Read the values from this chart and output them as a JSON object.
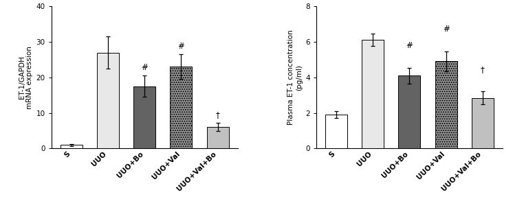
{
  "chart1": {
    "ylabel_line1": "ET-1/GAPDH",
    "ylabel_line2": "mRNA expression",
    "categories": [
      "S",
      "UUO",
      "UUO+Bo",
      "UUO+Val",
      "UUO+Val+Bo"
    ],
    "values": [
      1.0,
      27.0,
      17.5,
      23.0,
      6.0
    ],
    "errors": [
      0.3,
      4.5,
      3.0,
      3.5,
      1.2
    ],
    "ylim": [
      0,
      40
    ],
    "yticks": [
      0,
      10,
      20,
      30,
      40
    ],
    "bar_colors": [
      "#ffffff",
      "#e8e8e8",
      "#636363",
      "#969696",
      "#c0c0c0"
    ],
    "bar_hatches": [
      "",
      "",
      "",
      ".....",
      ""
    ],
    "annotations": [
      "",
      "",
      "#",
      "#",
      "†"
    ],
    "annot_offsets": [
      0,
      0,
      1.0,
      1.0,
      1.0
    ]
  },
  "chart2": {
    "ylabel_line1": "Plasma ET-1 concentration",
    "ylabel_line2": "(pg/ml)",
    "categories": [
      "S",
      "UUO",
      "UUO+Bo",
      "UUO+Val",
      "UUO+Val+Bo"
    ],
    "values": [
      1.9,
      6.1,
      4.1,
      4.9,
      2.85
    ],
    "errors": [
      0.2,
      0.35,
      0.45,
      0.55,
      0.35
    ],
    "ylim": [
      0,
      8
    ],
    "yticks": [
      0,
      2,
      4,
      6,
      8
    ],
    "bar_colors": [
      "#ffffff",
      "#e8e8e8",
      "#636363",
      "#969696",
      "#c0c0c0"
    ],
    "bar_hatches": [
      "",
      "",
      "",
      ".....",
      ""
    ],
    "annotations": [
      "",
      "",
      "#",
      "#",
      "†"
    ],
    "annot_offsets": [
      0,
      0,
      1.0,
      1.0,
      1.0
    ]
  }
}
